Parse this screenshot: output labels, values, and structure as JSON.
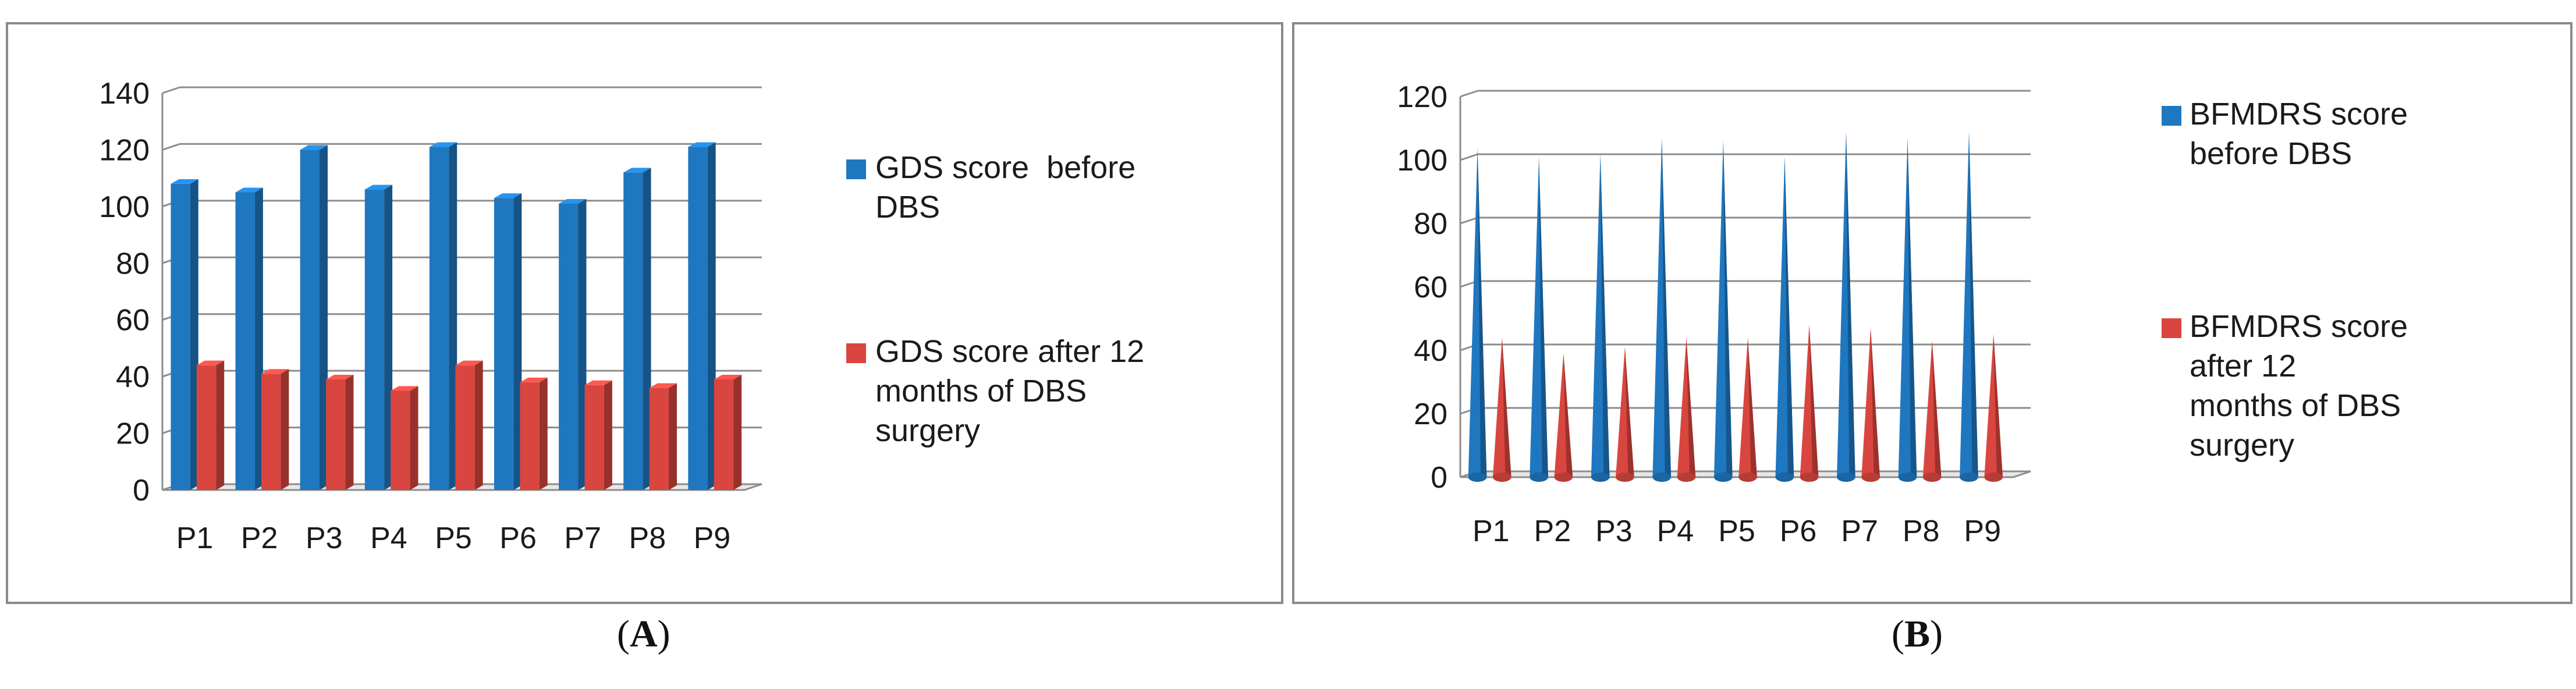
{
  "chart_data": [
    {
      "type": "bar",
      "style": "3d-column",
      "categories": [
        "P1",
        "P2",
        "P3",
        "P4",
        "P5",
        "P6",
        "P7",
        "P8",
        "P9"
      ],
      "series": [
        {
          "name": "GDS score  before DBS",
          "color": "#1f77c0",
          "values": [
            108,
            105,
            120,
            106,
            121,
            103,
            101,
            112,
            121
          ]
        },
        {
          "name": "GDS score after 12 months of DBS surgery",
          "color": "#d9463f",
          "values": [
            44,
            41,
            39,
            35,
            44,
            38,
            37,
            36,
            39
          ]
        }
      ],
      "yticks": [
        0,
        20,
        40,
        60,
        80,
        100,
        120,
        140
      ],
      "ylim": [
        0,
        140
      ],
      "legend_position": "right",
      "caption_label": "A"
    },
    {
      "type": "bar",
      "style": "3d-cone",
      "categories": [
        "P1",
        "P2",
        "P3",
        "P4",
        "P5",
        "P6",
        "P7",
        "P8",
        "P9"
      ],
      "series": [
        {
          "name": "BFMDRS score before DBS",
          "color": "#1f77c0",
          "values": [
            104,
            101,
            102,
            107,
            106,
            101,
            109,
            107,
            109
          ]
        },
        {
          "name": "BFMDRS score after 12 months of DBS surgery",
          "color": "#d9463f",
          "values": [
            44,
            39,
            41,
            44,
            44,
            48,
            47,
            43,
            45
          ]
        }
      ],
      "yticks": [
        0,
        20,
        40,
        60,
        80,
        100,
        120
      ],
      "ylim": [
        0,
        120
      ],
      "legend_position": "right",
      "caption_label": "B"
    }
  ],
  "legendA": {
    "before": "GDS score  before\nDBS",
    "after": "GDS score after 12\nmonths of DBS\nsurgery"
  },
  "legendB": {
    "before": "BFMDRS score\nbefore DBS",
    "after": "BFMDRS score\nafter 12\nmonths of DBS\nsurgery"
  },
  "captions": {
    "A": "A",
    "B": "B"
  },
  "colors": {
    "blue": "#1f77c0",
    "red": "#d9463f",
    "grid": "#8c8c8c"
  }
}
